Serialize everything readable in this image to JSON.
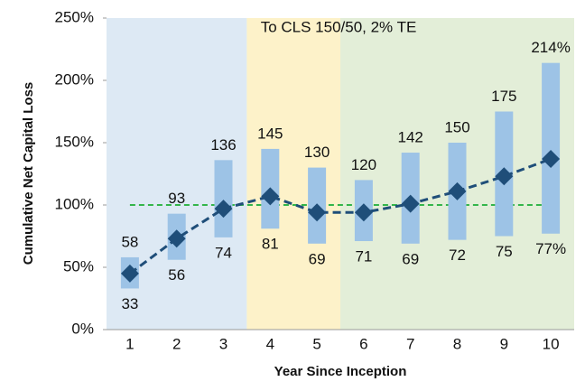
{
  "chart_data": {
    "type": "range",
    "annotation": "To CLS 150/50, 2% TE",
    "x_label": "Year Since Inception",
    "y_label": "Cumulative Net Capital Loss",
    "categories": [
      "1",
      "2",
      "3",
      "4",
      "5",
      "6",
      "7",
      "8",
      "9",
      "10"
    ],
    "high": {
      "color": "#9dc3e6",
      "values": [
        58,
        93,
        136,
        145,
        130,
        120,
        142,
        150,
        175,
        214
      ],
      "value_labels": [
        "58",
        "93",
        "136",
        "145",
        "130",
        "120",
        "142",
        "150",
        "175",
        "214%"
      ]
    },
    "low": {
      "values": [
        33,
        56,
        74,
        81,
        69,
        71,
        69,
        72,
        75,
        77
      ],
      "value_labels": [
        "33",
        "56",
        "74",
        "81",
        "69",
        "71",
        "69",
        "72",
        "75",
        "77%"
      ]
    },
    "median": {
      "color": "#1f4e79",
      "values": [
        45,
        73,
        97,
        107,
        94,
        94,
        101,
        111,
        123,
        137
      ]
    },
    "reference": {
      "value": 100,
      "color": "#33b54a"
    },
    "shading": [
      {
        "span": 3,
        "color": "#dde9f4"
      },
      {
        "span": 2,
        "color": "#fdf2c9"
      },
      {
        "span": 5,
        "color": "#e3eed8"
      }
    ],
    "ylim": [
      0,
      250
    ],
    "yticks": [
      {
        "value": 0,
        "label": "0%"
      },
      {
        "value": 50,
        "label": "50%"
      },
      {
        "value": 100,
        "label": "100%"
      },
      {
        "value": 150,
        "label": "150%"
      },
      {
        "value": 200,
        "label": "200%"
      },
      {
        "value": 250,
        "label": "250%"
      }
    ]
  }
}
